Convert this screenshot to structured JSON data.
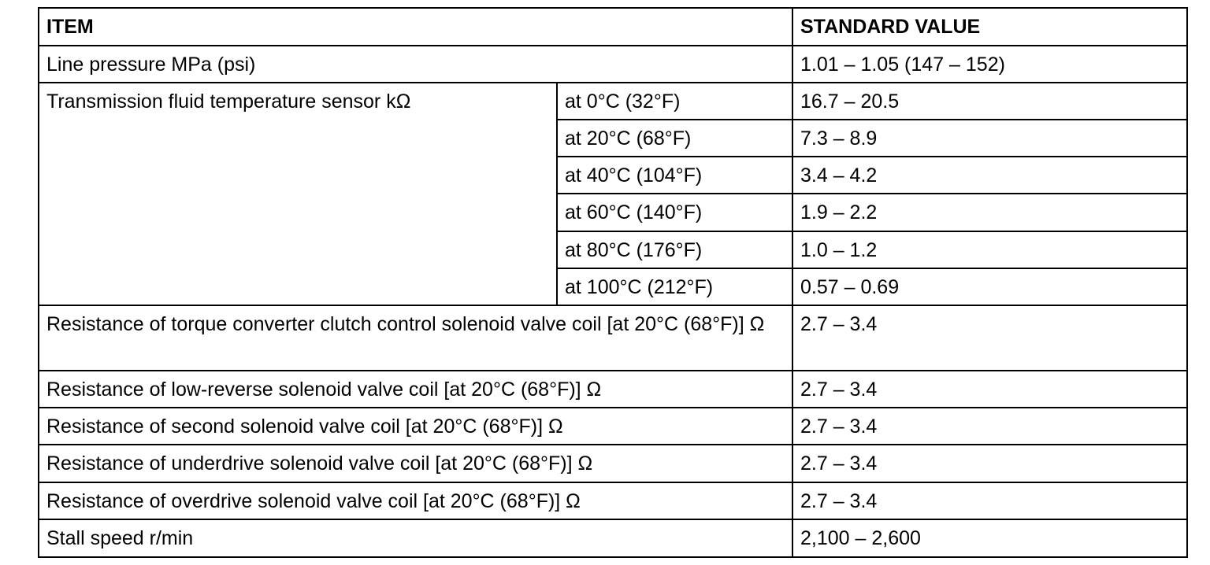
{
  "table": {
    "header": {
      "item": "ITEM",
      "value": "STANDARD VALUE"
    },
    "rows": [
      {
        "item": "Line pressure MPa (psi)",
        "value": "1.01 – 1.05 (147 – 152)"
      },
      {
        "item": "Transmission fluid temperature sensor kΩ",
        "conditions": [
          {
            "condition": "at 0°C (32°F)",
            "value": "16.7 – 20.5"
          },
          {
            "condition": "at 20°C (68°F)",
            "value": "7.3 – 8.9"
          },
          {
            "condition": "at 40°C (104°F)",
            "value": "3.4 – 4.2"
          },
          {
            "condition": "at 60°C (140°F)",
            "value": "1.9 – 2.2"
          },
          {
            "condition": "at 80°C (176°F)",
            "value": "1.0 – 1.2"
          },
          {
            "condition": "at 100°C (212°F)",
            "value": "0.57 – 0.69"
          }
        ]
      },
      {
        "item": "Resistance of torque converter clutch control solenoid valve coil [at 20°C (68°F)] Ω",
        "value": "2.7 – 3.4"
      },
      {
        "item": "Resistance of low-reverse solenoid valve coil [at 20°C (68°F)] Ω",
        "value": "2.7 – 3.4"
      },
      {
        "item": "Resistance of second solenoid valve coil [at 20°C (68°F)] Ω",
        "value": "2.7 – 3.4"
      },
      {
        "item": "Resistance of underdrive solenoid valve coil [at 20°C (68°F)] Ω",
        "value": "2.7 – 3.4"
      },
      {
        "item": "Resistance of overdrive solenoid valve coil [at 20°C (68°F)] Ω",
        "value": "2.7 – 3.4"
      },
      {
        "item": "Stall speed r/min",
        "value": "2,100 – 2,600"
      }
    ]
  }
}
